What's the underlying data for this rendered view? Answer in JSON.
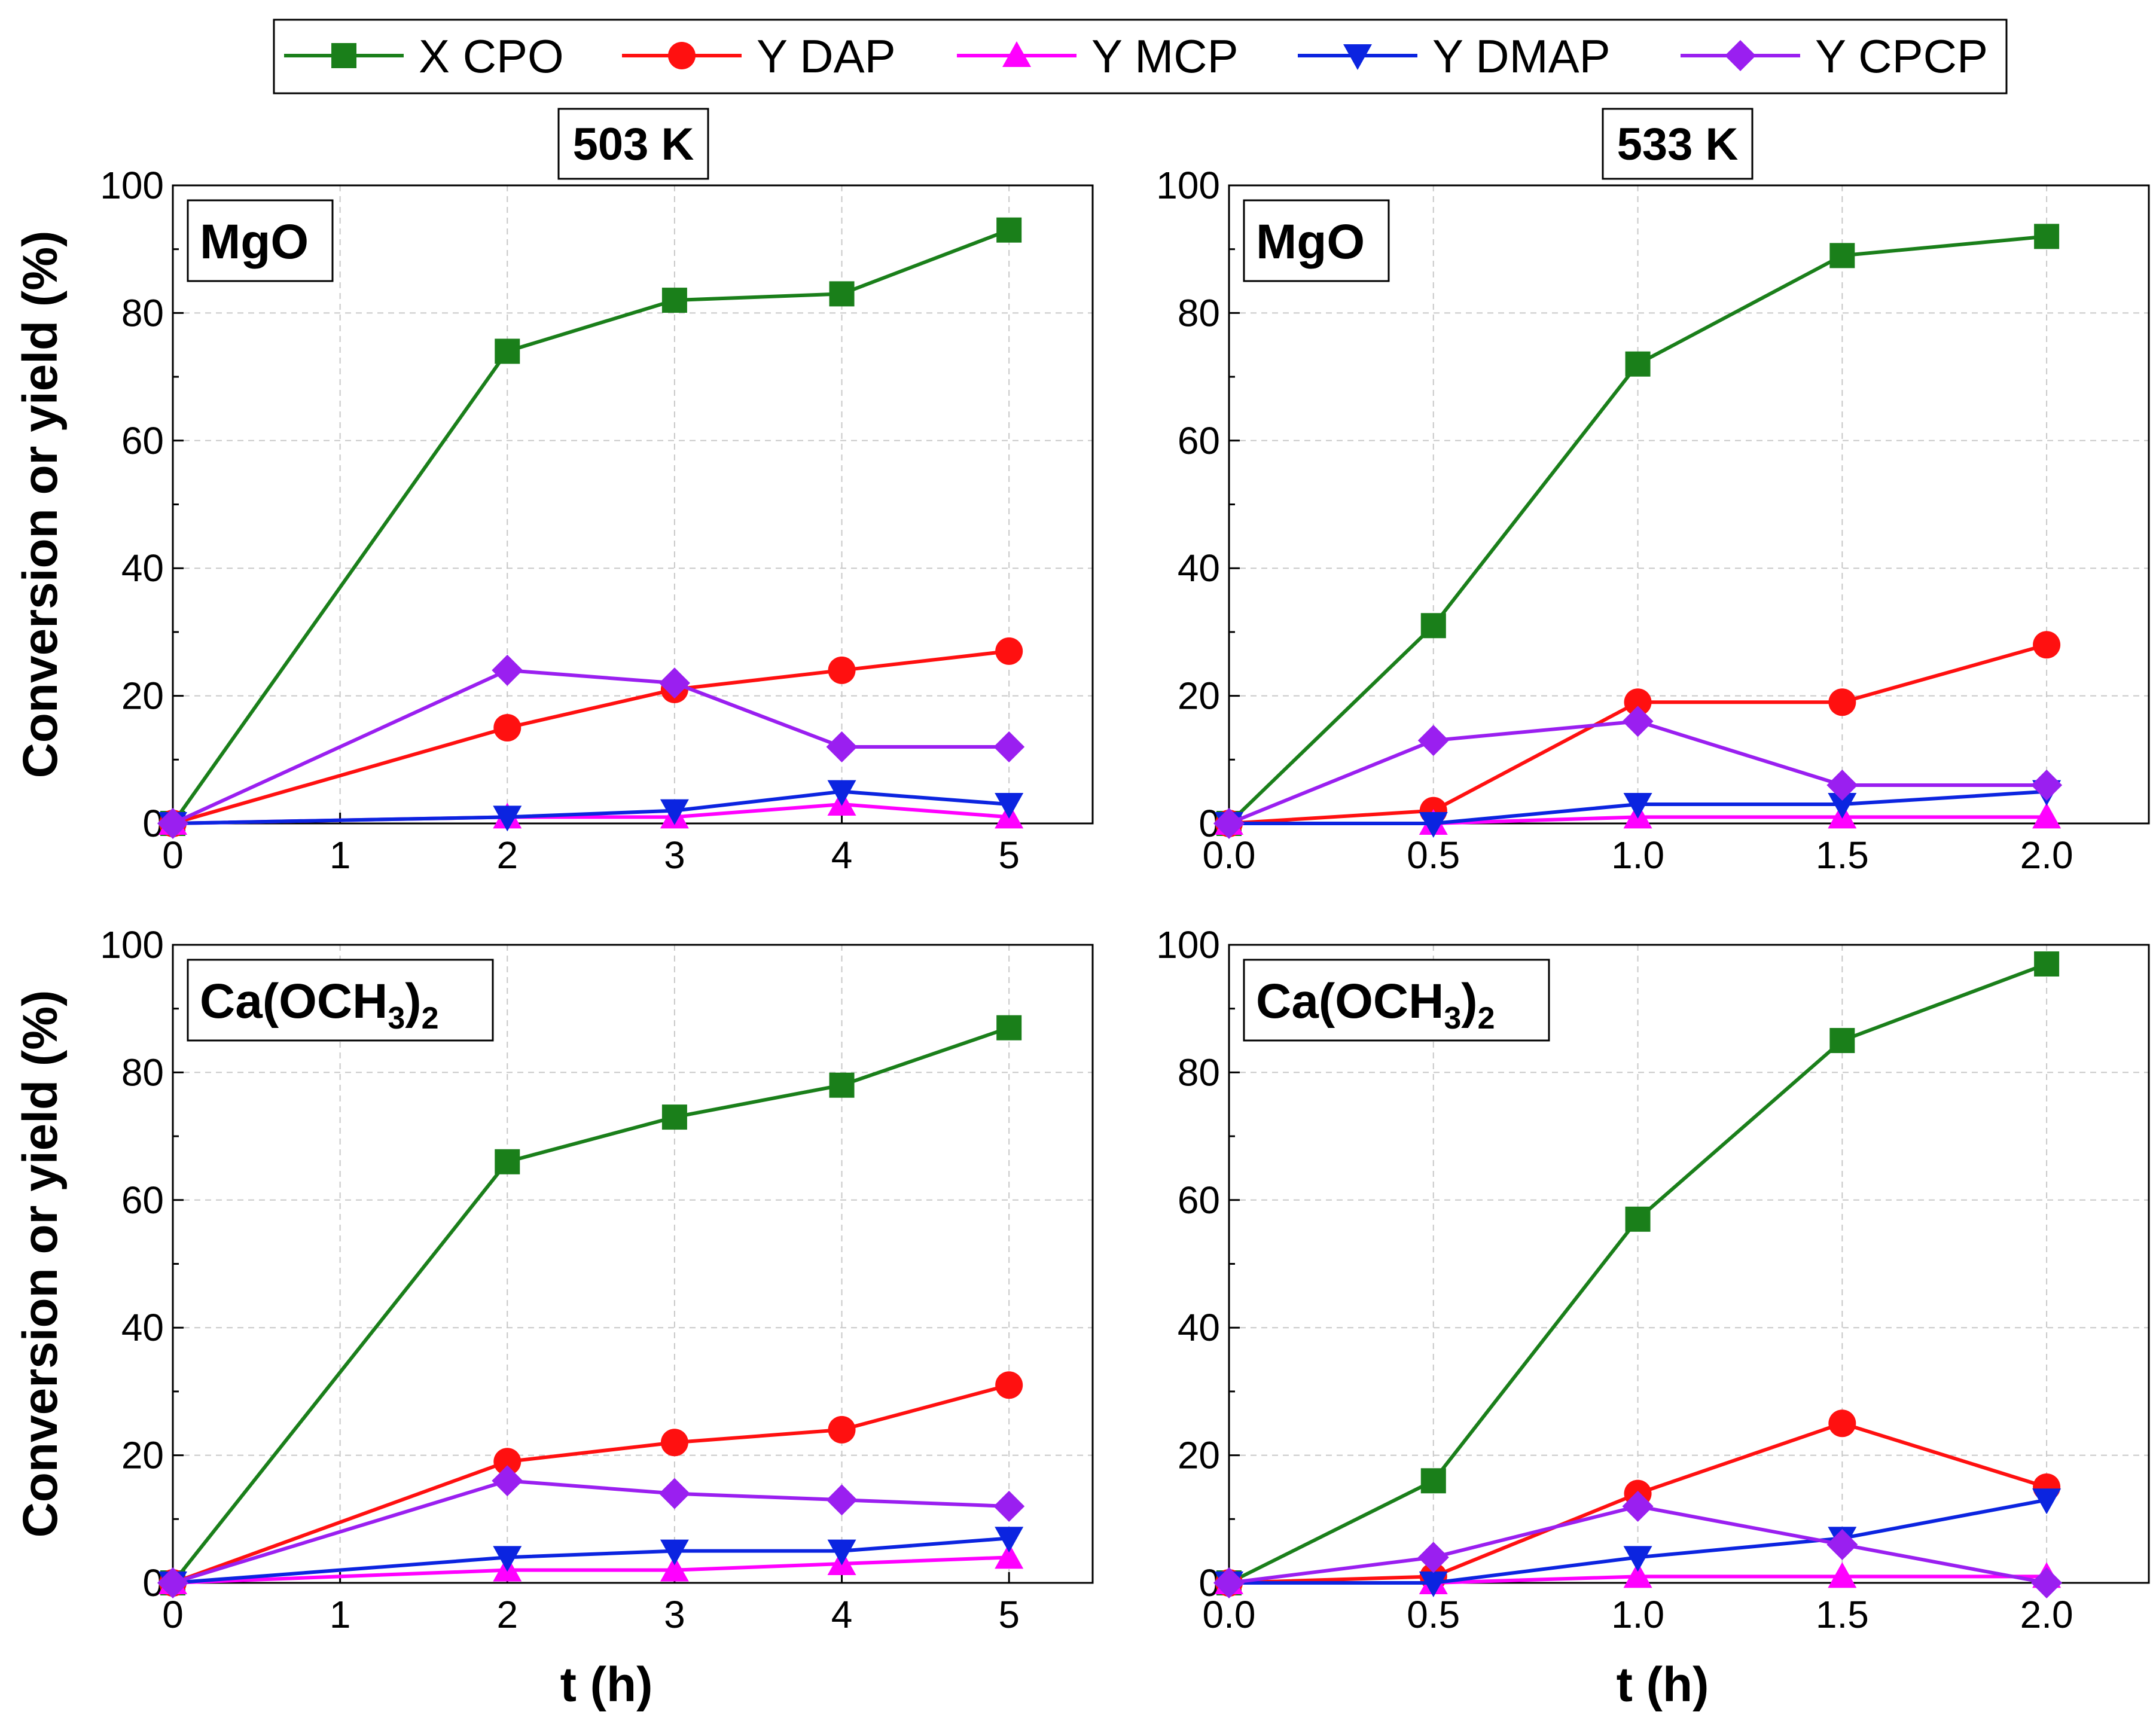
{
  "legend": [
    {
      "label": "X CPO",
      "color": "#1a7f1a",
      "marker": "square"
    },
    {
      "label": "Y DAP",
      "color": "#ff1010",
      "marker": "circle"
    },
    {
      "label": "Y MCP",
      "color": "#ff00ff",
      "marker": "triangle-up"
    },
    {
      "label": "Y DMAP",
      "color": "#0b24e0",
      "marker": "triangle-down"
    },
    {
      "label": "Y CPCP",
      "color": "#9a1ff0",
      "marker": "diamond"
    }
  ],
  "shared": {
    "ylabel": "Conversion or yield (%)",
    "xlabel": "t (h)"
  },
  "chart_data": [
    {
      "type": "line",
      "panel": "top-left",
      "temperature": "503 K",
      "catalyst": "MgO",
      "xlim": [
        0,
        5.5
      ],
      "ylim": [
        0,
        100
      ],
      "x_ticks": [
        0,
        1,
        2,
        3,
        4,
        5
      ],
      "x_tick_labels": [
        "0",
        "1",
        "2",
        "3",
        "4",
        "5"
      ],
      "y_ticks": [
        0,
        20,
        40,
        60,
        80,
        100
      ],
      "y_tick_labels": [
        "0",
        "20",
        "40",
        "60",
        "80",
        "100"
      ],
      "x": [
        0,
        2,
        3,
        4,
        5
      ],
      "series": [
        {
          "name": "X CPO",
          "values": [
            0,
            74,
            82,
            83,
            93
          ]
        },
        {
          "name": "Y DAP",
          "values": [
            0,
            15,
            21,
            24,
            27
          ]
        },
        {
          "name": "Y MCP",
          "values": [
            0,
            1,
            1,
            3,
            1
          ]
        },
        {
          "name": "Y DMAP",
          "values": [
            0,
            1,
            2,
            5,
            3
          ]
        },
        {
          "name": "Y CPCP",
          "values": [
            0,
            24,
            22,
            12,
            12
          ]
        }
      ]
    },
    {
      "type": "line",
      "panel": "top-right",
      "temperature": "533 K",
      "catalyst": "MgO",
      "xlim": [
        0,
        2.25
      ],
      "ylim": [
        0,
        100
      ],
      "x_ticks": [
        0,
        0.5,
        1,
        1.5,
        2
      ],
      "x_tick_labels": [
        "0.0",
        "0.5",
        "1.0",
        "1.5",
        "2.0"
      ],
      "y_ticks": [
        0,
        20,
        40,
        60,
        80,
        100
      ],
      "y_tick_labels": [
        "0",
        "20",
        "40",
        "60",
        "80",
        "100"
      ],
      "x": [
        0,
        0.5,
        1,
        1.5,
        2
      ],
      "series": [
        {
          "name": "X CPO",
          "values": [
            0,
            31,
            72,
            89,
            92
          ]
        },
        {
          "name": "Y DAP",
          "values": [
            0,
            2,
            19,
            19,
            28
          ]
        },
        {
          "name": "Y MCP",
          "values": [
            0,
            0,
            1,
            1,
            1
          ]
        },
        {
          "name": "Y DMAP",
          "values": [
            0,
            0,
            3,
            3,
            5
          ]
        },
        {
          "name": "Y CPCP",
          "values": [
            0,
            13,
            16,
            6,
            6
          ]
        }
      ]
    },
    {
      "type": "line",
      "panel": "bottom-left",
      "temperature": "503 K",
      "catalyst": "Ca(OCH3)2",
      "xlim": [
        0,
        5.5
      ],
      "ylim": [
        0,
        100
      ],
      "x_ticks": [
        0,
        1,
        2,
        3,
        4,
        5
      ],
      "x_tick_labels": [
        "0",
        "1",
        "2",
        "3",
        "4",
        "5"
      ],
      "y_ticks": [
        0,
        20,
        40,
        60,
        80,
        100
      ],
      "y_tick_labels": [
        "0",
        "20",
        "40",
        "60",
        "80",
        "100"
      ],
      "x": [
        0,
        2,
        3,
        4,
        5
      ],
      "series": [
        {
          "name": "X CPO",
          "values": [
            0,
            66,
            73,
            78,
            87
          ]
        },
        {
          "name": "Y DAP",
          "values": [
            0,
            19,
            22,
            24,
            31
          ]
        },
        {
          "name": "Y MCP",
          "values": [
            0,
            2,
            2,
            3,
            4
          ]
        },
        {
          "name": "Y DMAP",
          "values": [
            0,
            4,
            5,
            5,
            7
          ]
        },
        {
          "name": "Y CPCP",
          "values": [
            0,
            16,
            14,
            13,
            12
          ]
        }
      ]
    },
    {
      "type": "line",
      "panel": "bottom-right",
      "temperature": "533 K",
      "catalyst": "Ca(OCH3)2",
      "xlim": [
        0,
        2.25
      ],
      "ylim": [
        0,
        100
      ],
      "x_ticks": [
        0,
        0.5,
        1,
        1.5,
        2
      ],
      "x_tick_labels": [
        "0.0",
        "0.5",
        "1.0",
        "1.5",
        "2.0"
      ],
      "y_ticks": [
        0,
        20,
        40,
        60,
        80,
        100
      ],
      "y_tick_labels": [
        "0",
        "20",
        "40",
        "60",
        "80",
        "100"
      ],
      "x": [
        0,
        0.5,
        1,
        1.5,
        2
      ],
      "series": [
        {
          "name": "X CPO",
          "values": [
            0,
            16,
            57,
            85,
            97
          ]
        },
        {
          "name": "Y DAP",
          "values": [
            0,
            1,
            14,
            25,
            15
          ]
        },
        {
          "name": "Y MCP",
          "values": [
            0,
            0,
            1,
            1,
            1
          ]
        },
        {
          "name": "Y DMAP",
          "values": [
            0,
            0,
            4,
            7,
            13
          ]
        },
        {
          "name": "Y CPCP",
          "values": [
            0,
            4,
            12,
            6,
            0
          ]
        }
      ]
    }
  ]
}
